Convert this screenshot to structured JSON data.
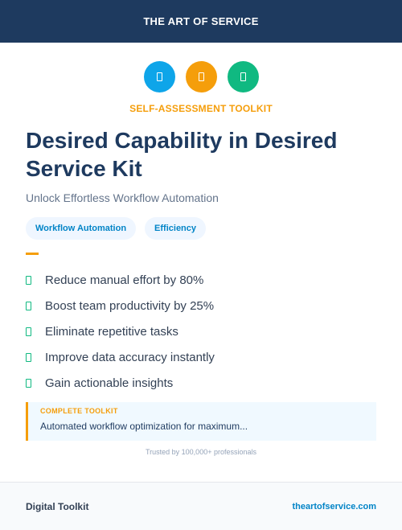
{
  "header": {
    "brand": "THE ART OF SERVICE"
  },
  "icons": [
    {
      "name": "tool-icon",
      "color": "#0ea5e9"
    },
    {
      "name": "chart-icon",
      "color": "#f59e0b"
    },
    {
      "name": "check-icon",
      "color": "#10b981"
    }
  ],
  "eyebrow": "SELF-ASSESSMENT TOOLKIT",
  "title": "Desired Capability in Desired Service Kit",
  "subtitle": "Unlock Effortless Workflow Automation",
  "tags": [
    "Workflow Automation",
    "Efficiency"
  ],
  "benefits": [
    "Reduce manual effort by 80%",
    "Boost team productivity by 25%",
    "Eliminate repetitive tasks",
    "Improve data accuracy instantly",
    "Gain actionable insights"
  ],
  "callout": {
    "label": "COMPLETE TOOLKIT",
    "text": "Automated workflow optimization for maximum..."
  },
  "trust": "Trusted by 100,000+ professionals",
  "footer": {
    "left": "Digital Toolkit",
    "right": "theartofservice.com"
  },
  "colors": {
    "navy": "#1e3a5f",
    "accent_orange": "#f59e0b",
    "accent_blue": "#0ea5e9",
    "accent_green": "#10b981"
  }
}
